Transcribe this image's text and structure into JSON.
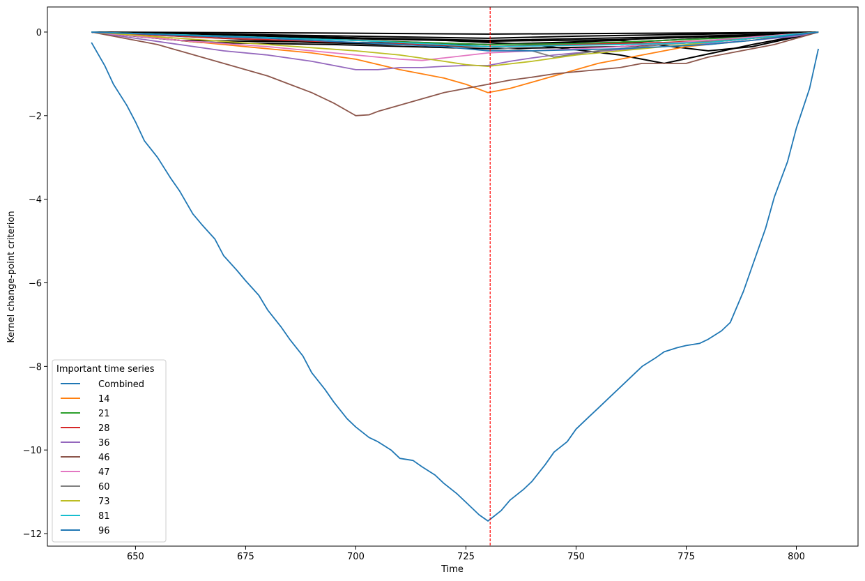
{
  "chart_data": {
    "type": "line",
    "title": "",
    "xlabel": "Time",
    "ylabel": "Kernel change-point criterion",
    "xlim": [
      630,
      814
    ],
    "ylim": [
      -12.3,
      0.6
    ],
    "xticks": [
      650,
      675,
      700,
      725,
      750,
      775,
      800
    ],
    "yticks": [
      0,
      -2,
      -4,
      -6,
      -8,
      -10,
      -12
    ],
    "xtick_labels": [
      "650",
      "675",
      "700",
      "725",
      "750",
      "775",
      "800"
    ],
    "ytick_labels": [
      "0",
      "−2",
      "−4",
      "−6",
      "−8",
      "−10",
      "−12"
    ],
    "grid": false,
    "legend": {
      "title": "Important time series",
      "placement": "lower-left"
    },
    "change_point": {
      "x": 730.5,
      "color": "#ff0000",
      "style": "dashed"
    },
    "background_series_color": "#000000",
    "background_series": [
      {
        "x": [
          640,
          670,
          690,
          710,
          730,
          750,
          770,
          790,
          805
        ],
        "values": [
          0,
          -0.15,
          -0.25,
          -0.3,
          -0.35,
          -0.3,
          -0.2,
          -0.1,
          0
        ]
      },
      {
        "x": [
          640,
          670,
          700,
          730,
          760,
          790,
          805
        ],
        "values": [
          0,
          -0.1,
          -0.2,
          -0.3,
          -0.25,
          -0.1,
          0
        ]
      },
      {
        "x": [
          640,
          680,
          720,
          740,
          760,
          770,
          790,
          805
        ],
        "values": [
          0,
          -0.08,
          -0.2,
          -0.3,
          -0.55,
          -0.75,
          -0.3,
          0
        ]
      },
      {
        "x": [
          640,
          660,
          700,
          730,
          760,
          780,
          790,
          805
        ],
        "values": [
          0,
          -0.2,
          -0.25,
          -0.3,
          -0.2,
          -0.45,
          -0.35,
          0
        ]
      },
      {
        "x": [
          640,
          670,
          700,
          730,
          750,
          780,
          805
        ],
        "values": [
          0,
          -0.05,
          -0.1,
          -0.15,
          -0.1,
          -0.05,
          0
        ]
      },
      {
        "x": [
          640,
          665,
          695,
          730,
          760,
          785,
          805
        ],
        "values": [
          0,
          -0.25,
          -0.3,
          -0.4,
          -0.35,
          -0.2,
          0
        ]
      },
      {
        "x": [
          640,
          680,
          710,
          730,
          760,
          790,
          805
        ],
        "values": [
          0,
          -0.12,
          -0.18,
          -0.22,
          -0.18,
          -0.08,
          0
        ]
      },
      {
        "x": [
          640,
          660,
          690,
          730,
          770,
          795,
          805
        ],
        "values": [
          0,
          -0.06,
          -0.12,
          -0.2,
          -0.12,
          -0.05,
          0
        ]
      },
      {
        "x": [
          640,
          690,
          730,
          780,
          805
        ],
        "values": [
          0,
          -0.02,
          -0.05,
          -0.02,
          0
        ]
      }
    ],
    "series": [
      {
        "name": "Combined",
        "color": "#1f77b4",
        "x": [
          640,
          643,
          645,
          648,
          650,
          652,
          655,
          658,
          660,
          663,
          665,
          668,
          670,
          673,
          675,
          678,
          680,
          683,
          685,
          688,
          690,
          693,
          695,
          698,
          700,
          703,
          705,
          708,
          710,
          713,
          715,
          718,
          720,
          723,
          725,
          728,
          730,
          733,
          735,
          738,
          740,
          743,
          745,
          748,
          750,
          753,
          755,
          758,
          760,
          763,
          765,
          768,
          770,
          773,
          775,
          778,
          780,
          783,
          785,
          788,
          790,
          793,
          795,
          798,
          800,
          803,
          805
        ],
        "values": [
          -0.25,
          -0.8,
          -1.25,
          -1.75,
          -2.15,
          -2.6,
          -3.0,
          -3.5,
          -3.8,
          -4.35,
          -4.6,
          -4.95,
          -5.35,
          -5.7,
          -5.95,
          -6.3,
          -6.65,
          -7.05,
          -7.35,
          -7.75,
          -8.15,
          -8.55,
          -8.85,
          -9.25,
          -9.45,
          -9.7,
          -9.8,
          -10.0,
          -10.2,
          -10.25,
          -10.4,
          -10.6,
          -10.8,
          -11.05,
          -11.25,
          -11.55,
          -11.7,
          -11.45,
          -11.2,
          -10.95,
          -10.75,
          -10.35,
          -10.05,
          -9.8,
          -9.5,
          -9.2,
          -9.0,
          -8.7,
          -8.5,
          -8.2,
          -8.0,
          -7.8,
          -7.65,
          -7.55,
          -7.5,
          -7.45,
          -7.35,
          -7.15,
          -6.95,
          -6.2,
          -5.6,
          -4.7,
          -3.95,
          -3.1,
          -2.3,
          -1.35,
          -0.4
        ]
      },
      {
        "name": "14",
        "color": "#ff7f0e",
        "x": [
          640,
          650,
          660,
          670,
          680,
          690,
          700,
          710,
          715,
          720,
          725,
          730,
          735,
          740,
          745,
          750,
          755,
          760,
          765,
          770,
          775,
          780,
          785,
          790,
          795,
          800,
          805
        ],
        "values": [
          0,
          -0.08,
          -0.2,
          -0.3,
          -0.4,
          -0.5,
          -0.65,
          -0.9,
          -1.0,
          -1.1,
          -1.25,
          -1.45,
          -1.35,
          -1.2,
          -1.05,
          -0.9,
          -0.75,
          -0.65,
          -0.55,
          -0.45,
          -0.35,
          -0.3,
          -0.25,
          -0.2,
          -0.12,
          -0.08,
          0
        ]
      },
      {
        "name": "21",
        "color": "#2ca02c",
        "x": [
          640,
          670,
          700,
          730,
          750,
          770,
          790,
          805
        ],
        "values": [
          0,
          -0.1,
          -0.2,
          -0.3,
          -0.28,
          -0.2,
          -0.12,
          0
        ]
      },
      {
        "name": "28",
        "color": "#d62728",
        "x": [
          640,
          670,
          700,
          730,
          750,
          770,
          790,
          805
        ],
        "values": [
          0,
          -0.15,
          -0.25,
          -0.35,
          -0.3,
          -0.25,
          -0.15,
          0
        ]
      },
      {
        "name": "36",
        "color": "#9467bd",
        "x": [
          640,
          650,
          660,
          670,
          680,
          690,
          695,
          700,
          705,
          710,
          715,
          720,
          725,
          730,
          735,
          740,
          745,
          750,
          760,
          770,
          780,
          790,
          800,
          805
        ],
        "values": [
          0,
          -0.15,
          -0.3,
          -0.45,
          -0.55,
          -0.7,
          -0.8,
          -0.9,
          -0.9,
          -0.85,
          -0.85,
          -0.82,
          -0.8,
          -0.8,
          -0.7,
          -0.62,
          -0.55,
          -0.5,
          -0.42,
          -0.35,
          -0.28,
          -0.2,
          -0.1,
          0
        ]
      },
      {
        "name": "46",
        "color": "#8c564b",
        "x": [
          640,
          645,
          650,
          655,
          660,
          665,
          670,
          675,
          680,
          685,
          690,
          695,
          700,
          703,
          705,
          710,
          715,
          720,
          725,
          730,
          735,
          740,
          745,
          750,
          755,
          760,
          765,
          770,
          775,
          780,
          785,
          790,
          795,
          800,
          805
        ],
        "values": [
          0,
          -0.1,
          -0.2,
          -0.3,
          -0.45,
          -0.6,
          -0.75,
          -0.9,
          -1.05,
          -1.25,
          -1.45,
          -1.7,
          -2.0,
          -1.98,
          -1.9,
          -1.75,
          -1.6,
          -1.45,
          -1.35,
          -1.25,
          -1.15,
          -1.08,
          -1.0,
          -0.95,
          -0.9,
          -0.85,
          -0.75,
          -0.75,
          -0.75,
          -0.6,
          -0.5,
          -0.4,
          -0.3,
          -0.15,
          0
        ]
      },
      {
        "name": "47",
        "color": "#e377c2",
        "x": [
          640,
          660,
          680,
          700,
          710,
          715,
          720,
          730,
          740,
          760,
          780,
          805
        ],
        "values": [
          0,
          -0.2,
          -0.35,
          -0.55,
          -0.65,
          -0.68,
          -0.62,
          -0.5,
          -0.45,
          -0.35,
          -0.2,
          0
        ]
      },
      {
        "name": "60",
        "color": "#7f7f7f",
        "x": [
          640,
          670,
          700,
          730,
          740,
          745,
          755,
          770,
          790,
          805
        ],
        "values": [
          0,
          -0.1,
          -0.2,
          -0.35,
          -0.45,
          -0.6,
          -0.45,
          -0.3,
          -0.15,
          0
        ]
      },
      {
        "name": "73",
        "color": "#bcbd22",
        "x": [
          640,
          660,
          680,
          700,
          710,
          720,
          725,
          730,
          740,
          750,
          760,
          770,
          780,
          790,
          805
        ],
        "values": [
          0,
          -0.15,
          -0.3,
          -0.45,
          -0.55,
          -0.7,
          -0.78,
          -0.82,
          -0.7,
          -0.55,
          -0.45,
          -0.35,
          -0.25,
          -0.15,
          0
        ]
      },
      {
        "name": "81",
        "color": "#17becf",
        "x": [
          640,
          670,
          700,
          730,
          760,
          780,
          790,
          805
        ],
        "values": [
          0,
          -0.1,
          -0.2,
          -0.35,
          -0.3,
          -0.25,
          -0.15,
          0
        ]
      },
      {
        "name": "96",
        "color": "#1f77b4",
        "x": [
          640,
          660,
          680,
          700,
          720,
          730,
          740,
          760,
          780,
          790,
          805
        ],
        "values": [
          0,
          -0.08,
          -0.15,
          -0.25,
          -0.35,
          -0.45,
          -0.45,
          -0.4,
          -0.3,
          -0.2,
          0
        ]
      }
    ]
  }
}
